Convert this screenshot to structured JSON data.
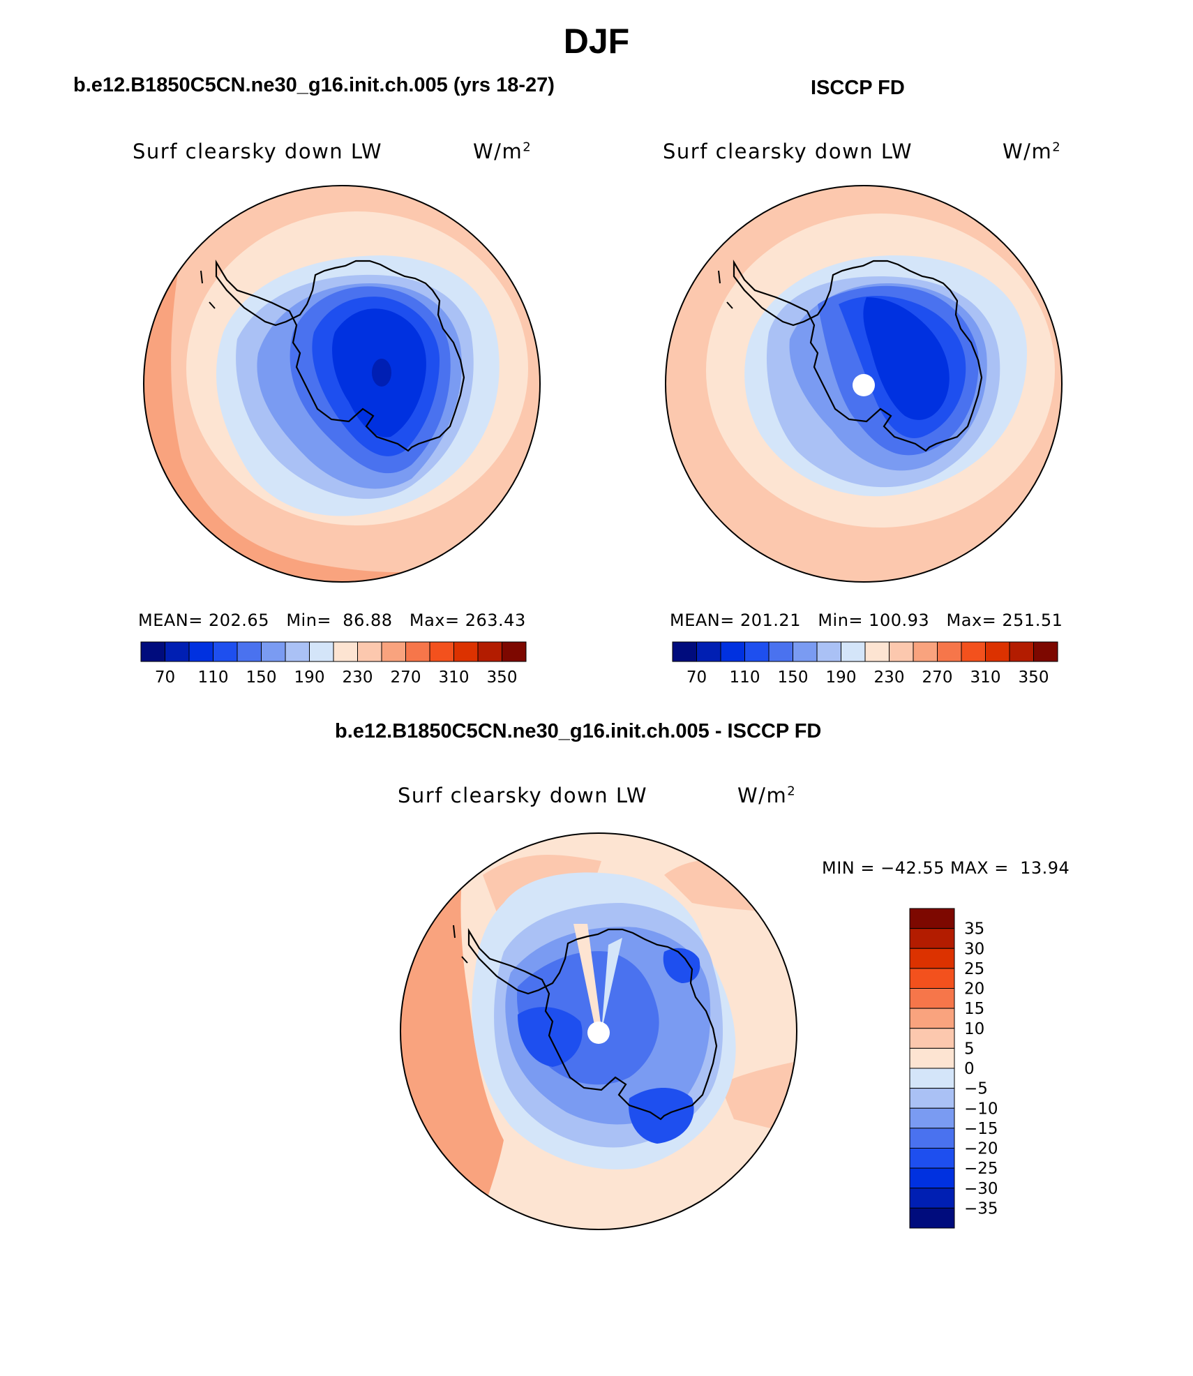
{
  "figure": {
    "season": "DJF",
    "model_case": "b.e12.B1850C5CN.ne30_g16.init.ch.005 (yrs 18-27)",
    "obs_case": "ISCCP FD",
    "diff_case": "b.e12.B1850C5CN.ne30_g16.init.ch.005 - ISCCP FD"
  },
  "panels": {
    "model": {
      "variable": "Surf clearsky down LW",
      "units": "W/m",
      "units_exp": "2",
      "stats": {
        "mean": "202.65",
        "min": "86.88",
        "max": "263.43"
      },
      "stats_text": "MEAN= 202.65   Min=  86.88   Max= 263.43"
    },
    "obs": {
      "variable": "Surf clearsky down LW",
      "units": "W/m",
      "units_exp": "2",
      "stats": {
        "mean": "201.21",
        "min": "100.93",
        "max": "251.51"
      },
      "stats_text": "MEAN= 201.21   Min= 100.93   Max= 251.51"
    },
    "diff": {
      "variable": "Surf clearsky down LW",
      "units": "W/m",
      "units_exp": "2",
      "stats": {
        "min": "−42.55",
        "max": "13.94"
      },
      "stats_text": "MIN = −42.55 MAX =  13.94"
    }
  },
  "colorbars": {
    "absolute": {
      "colors": [
        "#000c7d",
        "#001fb3",
        "#0031e0",
        "#1e4fef",
        "#4a72ef",
        "#7a9bf2",
        "#aac1f5",
        "#d4e5f9",
        "#fde4d2",
        "#fcc8ae",
        "#f9a37e",
        "#f6764a",
        "#f3511d",
        "#dc3200",
        "#b31c00",
        "#7d0800"
      ],
      "labels": [
        "70",
        "110",
        "150",
        "190",
        "230",
        "270",
        "310",
        "350"
      ]
    },
    "difference": {
      "colors": [
        "#7d0800",
        "#b31c00",
        "#dc3200",
        "#f3511d",
        "#f6764a",
        "#f9a37e",
        "#fcc8ae",
        "#fde4d2",
        "#d4e5f9",
        "#aac1f5",
        "#7a9bf2",
        "#4a72ef",
        "#1e4fef",
        "#0031e0",
        "#001fb3",
        "#000c7d"
      ],
      "labels": [
        "35",
        "30",
        "25",
        "20",
        "15",
        "10",
        "5",
        "0",
        "−5",
        "−10",
        "−15",
        "−20",
        "−25",
        "−30",
        "−35"
      ]
    }
  },
  "colors": {
    "land_outline": "#000000",
    "pole_mask": "#ffffff"
  }
}
